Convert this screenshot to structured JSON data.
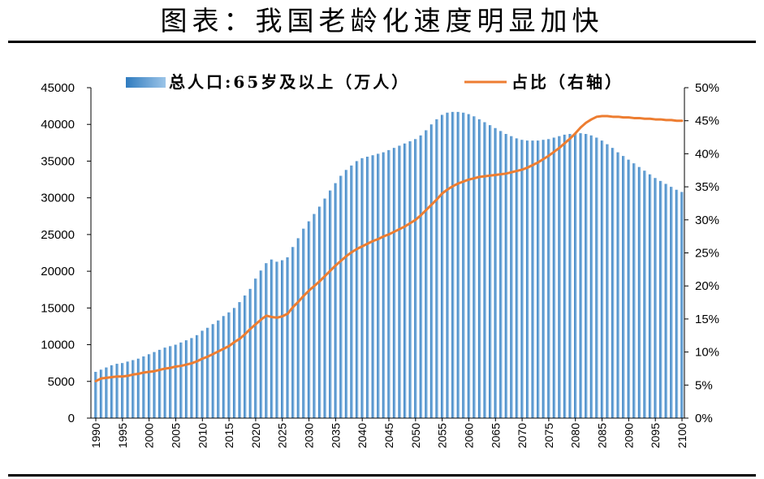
{
  "title": "图表：我国老龄化速度明显加快",
  "chart_data": {
    "type": "bar",
    "legend": "top",
    "grid": false,
    "colors": {
      "bar_dark": "#2F7BBF",
      "bar_light": "#9CC5E8",
      "line": "#ED7D31",
      "axis": "#000000"
    },
    "x": [
      1990,
      1991,
      1992,
      1993,
      1994,
      1995,
      1996,
      1997,
      1998,
      1999,
      2000,
      2001,
      2002,
      2003,
      2004,
      2005,
      2006,
      2007,
      2008,
      2009,
      2010,
      2011,
      2012,
      2013,
      2014,
      2015,
      2016,
      2017,
      2018,
      2019,
      2020,
      2021,
      2022,
      2023,
      2024,
      2025,
      2026,
      2027,
      2028,
      2029,
      2030,
      2031,
      2032,
      2033,
      2034,
      2035,
      2036,
      2037,
      2038,
      2039,
      2040,
      2041,
      2042,
      2043,
      2044,
      2045,
      2046,
      2047,
      2048,
      2049,
      2050,
      2051,
      2052,
      2053,
      2054,
      2055,
      2056,
      2057,
      2058,
      2059,
      2060,
      2061,
      2062,
      2063,
      2064,
      2065,
      2066,
      2067,
      2068,
      2069,
      2070,
      2071,
      2072,
      2073,
      2074,
      2075,
      2076,
      2077,
      2078,
      2079,
      2080,
      2081,
      2082,
      2083,
      2084,
      2085,
      2086,
      2087,
      2088,
      2089,
      2090,
      2091,
      2092,
      2093,
      2094,
      2095,
      2096,
      2097,
      2098,
      2099,
      2100
    ],
    "xticks": [
      1990,
      1995,
      2000,
      2005,
      2010,
      2015,
      2020,
      2025,
      2030,
      2035,
      2040,
      2045,
      2050,
      2055,
      2060,
      2065,
      2070,
      2075,
      2080,
      2085,
      2090,
      2095,
      2100
    ],
    "ylim_left": [
      0,
      45000
    ],
    "yticks_left": [
      0,
      5000,
      10000,
      15000,
      20000,
      25000,
      30000,
      35000,
      40000,
      45000
    ],
    "ylim_right": [
      0,
      50
    ],
    "yticks_right": [
      "0%",
      "5%",
      "10%",
      "15%",
      "20%",
      "25%",
      "30%",
      "35%",
      "40%",
      "45%",
      "50%"
    ],
    "series": [
      {
        "name": "总人口:65岁及以上（万人）",
        "type": "bar",
        "values": [
          6300,
          6600,
          6900,
          7200,
          7400,
          7500,
          7700,
          7900,
          8100,
          8400,
          8700,
          9000,
          9300,
          9600,
          9800,
          10000,
          10300,
          10600,
          10900,
          11300,
          11900,
          12300,
          12800,
          13300,
          13900,
          14400,
          15000,
          15800,
          16700,
          17600,
          19000,
          20100,
          21100,
          21600,
          21300,
          21500,
          21900,
          23300,
          24500,
          25800,
          26800,
          27800,
          28800,
          29900,
          31000,
          32000,
          33000,
          33800,
          34400,
          35000,
          35400,
          35600,
          35800,
          36000,
          36200,
          36500,
          36800,
          37100,
          37400,
          37700,
          38000,
          38500,
          39200,
          40000,
          40700,
          41300,
          41600,
          41700,
          41700,
          41600,
          41400,
          41100,
          40700,
          40300,
          39900,
          39500,
          39100,
          38700,
          38400,
          38100,
          37900,
          37800,
          37800,
          37800,
          37900,
          38000,
          38200,
          38400,
          38600,
          38700,
          38800,
          38800,
          38700,
          38500,
          38200,
          37800,
          37300,
          36800,
          36200,
          35700,
          35200,
          34700,
          34200,
          33700,
          33200,
          32700,
          32300,
          31900,
          31500,
          31100,
          30800
        ]
      },
      {
        "name": "占比（右轴）",
        "type": "line",
        "values": [
          5.6,
          6.0,
          6.1,
          6.2,
          6.3,
          6.3,
          6.4,
          6.6,
          6.7,
          6.9,
          7.0,
          7.1,
          7.3,
          7.5,
          7.6,
          7.8,
          7.9,
          8.1,
          8.3,
          8.6,
          9.0,
          9.3,
          9.7,
          10.1,
          10.5,
          10.9,
          11.5,
          12.0,
          12.7,
          13.5,
          14.2,
          14.9,
          15.5,
          15.3,
          15.2,
          15.4,
          15.8,
          16.8,
          17.6,
          18.5,
          19.3,
          20.0,
          20.7,
          21.5,
          22.3,
          23.1,
          23.8,
          24.5,
          25.1,
          25.6,
          26.0,
          26.4,
          26.8,
          27.1,
          27.5,
          27.8,
          28.2,
          28.6,
          29.0,
          29.5,
          30.0,
          30.7,
          31.5,
          32.3,
          33.1,
          34.0,
          34.6,
          35.1,
          35.5,
          35.8,
          36.1,
          36.3,
          36.5,
          36.6,
          36.7,
          36.8,
          36.9,
          37.0,
          37.2,
          37.4,
          37.6,
          37.9,
          38.3,
          38.7,
          39.2,
          39.7,
          40.3,
          40.9,
          41.6,
          42.3,
          43.1,
          44.0,
          44.7,
          45.2,
          45.6,
          45.7,
          45.7,
          45.6,
          45.6,
          45.5,
          45.5,
          45.4,
          45.4,
          45.3,
          45.3,
          45.2,
          45.2,
          45.1,
          45.1,
          45.0,
          45.0
        ]
      }
    ]
  }
}
